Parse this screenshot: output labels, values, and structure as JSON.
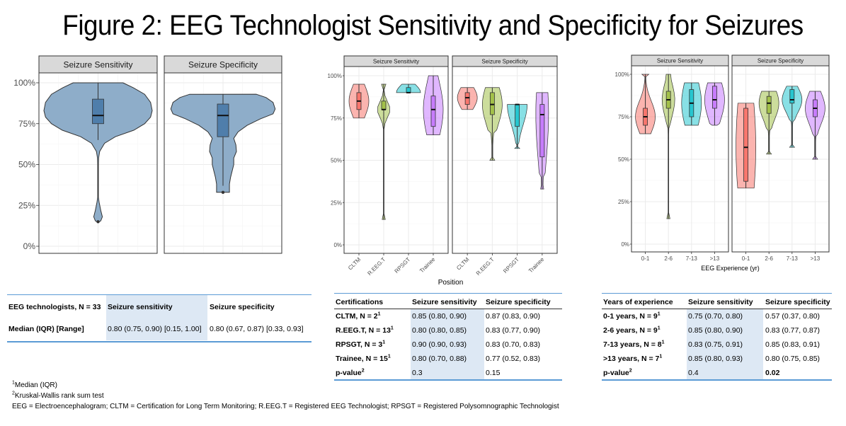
{
  "title": "Figure 2: EEG Technologist Sensitivity and Specificity for Seizures",
  "colors": {
    "overall_fill": "#8eadc9",
    "overall_box": "#4f7eab",
    "red": "#f8766d",
    "green": "#a3c14a",
    "cyan": "#27c6cf",
    "purple": "#c77cff",
    "strip_bg": "#d9d9d9",
    "table_rule": "#5b9bd5",
    "table_highlight": "#dde8f4"
  },
  "chart_data": [
    {
      "type": "violin",
      "id": "overall",
      "facets": [
        "Seizure Sensitivity",
        "Seizure Specificity"
      ],
      "y_ticks": [
        "0%",
        "25%",
        "50%",
        "75%",
        "100%"
      ],
      "ylim": [
        0,
        1
      ],
      "xlabel": "",
      "groups": [
        {
          "facet": "Seizure Sensitivity",
          "median": 0.8,
          "q1": 0.75,
          "q3": 0.9,
          "min": 0.15,
          "max": 1.0,
          "whisker_low": 0.65,
          "outliers": [
            0.15
          ]
        },
        {
          "facet": "Seizure Specificity",
          "median": 0.8,
          "q1": 0.67,
          "q3": 0.87,
          "min": 0.33,
          "max": 0.93,
          "whisker_low": 0.37,
          "outliers": [
            0.33
          ]
        }
      ]
    },
    {
      "type": "violin",
      "id": "certification",
      "facets": [
        "Seizure Sensitivity",
        "Seizure Specificity"
      ],
      "categories": [
        "CLTM",
        "R.EEG.T",
        "RPSGT",
        "Trainee"
      ],
      "y_ticks": [
        "0%",
        "25%",
        "50%",
        "75%",
        "100%"
      ],
      "ylim": [
        0,
        1
      ],
      "xlabel": "Position",
      "series": [
        {
          "facet": "Seizure Sensitivity",
          "values": [
            {
              "category": "CLTM",
              "median": 0.85,
              "q1": 0.8,
              "q3": 0.9,
              "min": 0.75,
              "max": 0.95
            },
            {
              "category": "R.EEG.T",
              "median": 0.8,
              "q1": 0.8,
              "q3": 0.85,
              "min": 0.15,
              "max": 0.95
            },
            {
              "category": "RPSGT",
              "median": 0.9,
              "q1": 0.9,
              "q3": 0.93,
              "min": 0.9,
              "max": 0.95
            },
            {
              "category": "Trainee",
              "median": 0.8,
              "q1": 0.7,
              "q3": 0.88,
              "min": 0.65,
              "max": 1.0
            }
          ]
        },
        {
          "facet": "Seizure Specificity",
          "values": [
            {
              "category": "CLTM",
              "median": 0.87,
              "q1": 0.83,
              "q3": 0.9,
              "min": 0.8,
              "max": 0.93
            },
            {
              "category": "R.EEG.T",
              "median": 0.83,
              "q1": 0.77,
              "q3": 0.9,
              "min": 0.5,
              "max": 0.93
            },
            {
              "category": "RPSGT",
              "median": 0.83,
              "q1": 0.7,
              "q3": 0.83,
              "min": 0.57,
              "max": 0.83
            },
            {
              "category": "Trainee",
              "median": 0.77,
              "q1": 0.52,
              "q3": 0.83,
              "min": 0.33,
              "max": 0.9
            }
          ]
        }
      ]
    },
    {
      "type": "violin",
      "id": "experience",
      "facets": [
        "Seizure Sensitivity",
        "Seizure Specificity"
      ],
      "categories": [
        "0-1",
        "2-6",
        "7-13",
        ">13"
      ],
      "y_ticks": [
        "0%",
        "25%",
        "50%",
        "75%",
        "100%"
      ],
      "ylim": [
        0,
        1
      ],
      "xlabel": "EEG Experience (yr)",
      "series": [
        {
          "facet": "Seizure Sensitivity",
          "values": [
            {
              "category": "0-1",
              "median": 0.75,
              "q1": 0.7,
              "q3": 0.8,
              "min": 0.65,
              "max": 1.0
            },
            {
              "category": "2-6",
              "median": 0.85,
              "q1": 0.8,
              "q3": 0.9,
              "min": 0.15,
              "max": 1.0
            },
            {
              "category": "7-13",
              "median": 0.83,
              "q1": 0.75,
              "q3": 0.91,
              "min": 0.7,
              "max": 0.95
            },
            {
              "category": ">13",
              "median": 0.85,
              "q1": 0.8,
              "q3": 0.93,
              "min": 0.7,
              "max": 0.95
            }
          ]
        },
        {
          "facet": "Seizure Specificity",
          "values": [
            {
              "category": "0-1",
              "median": 0.57,
              "q1": 0.37,
              "q3": 0.8,
              "min": 0.33,
              "max": 0.83
            },
            {
              "category": "2-6",
              "median": 0.83,
              "q1": 0.77,
              "q3": 0.87,
              "min": 0.53,
              "max": 0.9
            },
            {
              "category": "7-13",
              "median": 0.85,
              "q1": 0.83,
              "q3": 0.91,
              "min": 0.57,
              "max": 0.93
            },
            {
              "category": ">13",
              "median": 0.8,
              "q1": 0.75,
              "q3": 0.85,
              "min": 0.5,
              "max": 0.9
            }
          ]
        }
      ]
    }
  ],
  "tables": {
    "overall": {
      "header": [
        "EEG technologists,  N = 33",
        "Seizure sensitivity",
        "Seizure specificity"
      ],
      "rows": [
        [
          "Median  (IQR) [Range]",
          "0.80 (0.75, 0.90) [0.15, 1.00]",
          "0.80 (0.67, 0.87) [0.33, 0.93]"
        ]
      ]
    },
    "certification": {
      "header": [
        "Certifications",
        "Seizure sensitivity",
        "Seizure specificity"
      ],
      "rows": [
        [
          "CLTM,  N = 2",
          "1",
          "0.85 (0.80, 0.90)",
          "0.87 (0.83, 0.90)"
        ],
        [
          "R.EEG.T, N = 13",
          "1",
          "0.80 (0.80, 0.85)",
          "0.83 (0.77, 0.90)"
        ],
        [
          "RPSGT, N = 3",
          "1",
          "0.90 (0.90, 0.93)",
          "0.83 (0.70, 0.83)"
        ],
        [
          "Trainee,  N = 15",
          "1",
          "0.80 (0.70, 0.88)",
          "0.77 (0.52, 0.83)"
        ],
        [
          "p-value",
          "2",
          "0.3",
          "0.15"
        ]
      ]
    },
    "experience": {
      "header": [
        "Years of experience",
        "Seizure sensitivity",
        "Seizure specificity"
      ],
      "rows": [
        [
          "0-1 years, N = 9",
          "1",
          "0.75 (0.70, 0.80)",
          "0.57 (0.37, 0.80)"
        ],
        [
          "2-6 years, N = 9",
          "1",
          "0.85 (0.80, 0.90)",
          "0.83 (0.77, 0.87)"
        ],
        [
          "7-13 years, N = 8",
          "1",
          "0.83 (0.75, 0.91)",
          "0.85 (0.83, 0.91)"
        ],
        [
          ">13 years, N = 7",
          "1",
          "0.85 (0.80, 0.93)",
          "0.80 (0.75, 0.85)"
        ],
        [
          "p-value",
          "2",
          "0.4",
          "0.02"
        ]
      ]
    }
  },
  "footnotes": [
    {
      "sup": "1",
      "text": "Median (IQR)"
    },
    {
      "sup": "2",
      "text": "Kruskal-Wallis rank sum test"
    },
    {
      "sup": "",
      "text": "EEG = Electroencephalogram; CLTM = Certification for Long Term Monitoring; R.EEG.T = Registered EEG Technologist; RPSGT = Registered Polysomnographic Technologist"
    }
  ]
}
